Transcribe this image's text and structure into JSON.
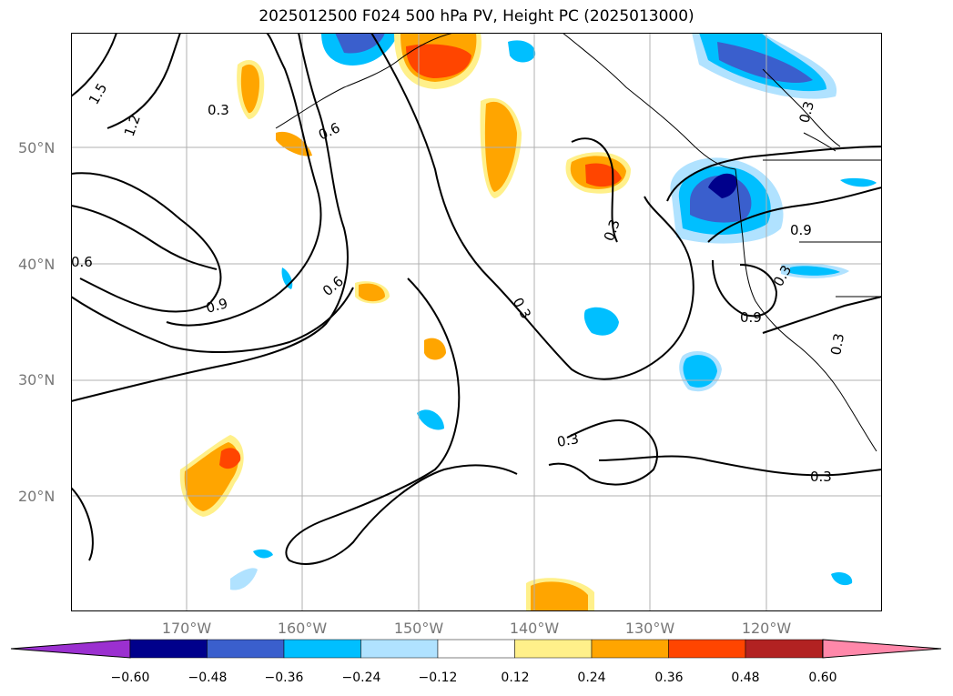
{
  "title": "2025012500 F024 500 hPa PV, Height PC (2025013000)",
  "lat_labels": [
    "50°N",
    "40°N",
    "30°N",
    "20°N"
  ],
  "lon_labels": [
    "170°W",
    "160°W",
    "150°W",
    "140°W",
    "130°W",
    "120°W"
  ],
  "colorbar": {
    "ticks": [
      "−0.60",
      "−0.48",
      "−0.36",
      "−0.24",
      "−0.12",
      "0.12",
      "0.24",
      "0.36",
      "0.48",
      "0.60"
    ],
    "colors": [
      "#9b30d0",
      "#00008b",
      "#3a5fcd",
      "#00bfff",
      "#b0e2ff",
      "#ffffff",
      "#fff08a",
      "#ffa500",
      "#ff4500",
      "#b22222",
      "#ff88aa"
    ]
  },
  "contour_labels": [
    "1.5",
    "1.2",
    "0.3",
    "0.6",
    "0.6",
    "0.9",
    "0.6",
    "0.3",
    "0.3",
    "0.3",
    "0.3",
    "0.3",
    "0.9",
    "0.9",
    "0.3",
    "0.3"
  ]
}
